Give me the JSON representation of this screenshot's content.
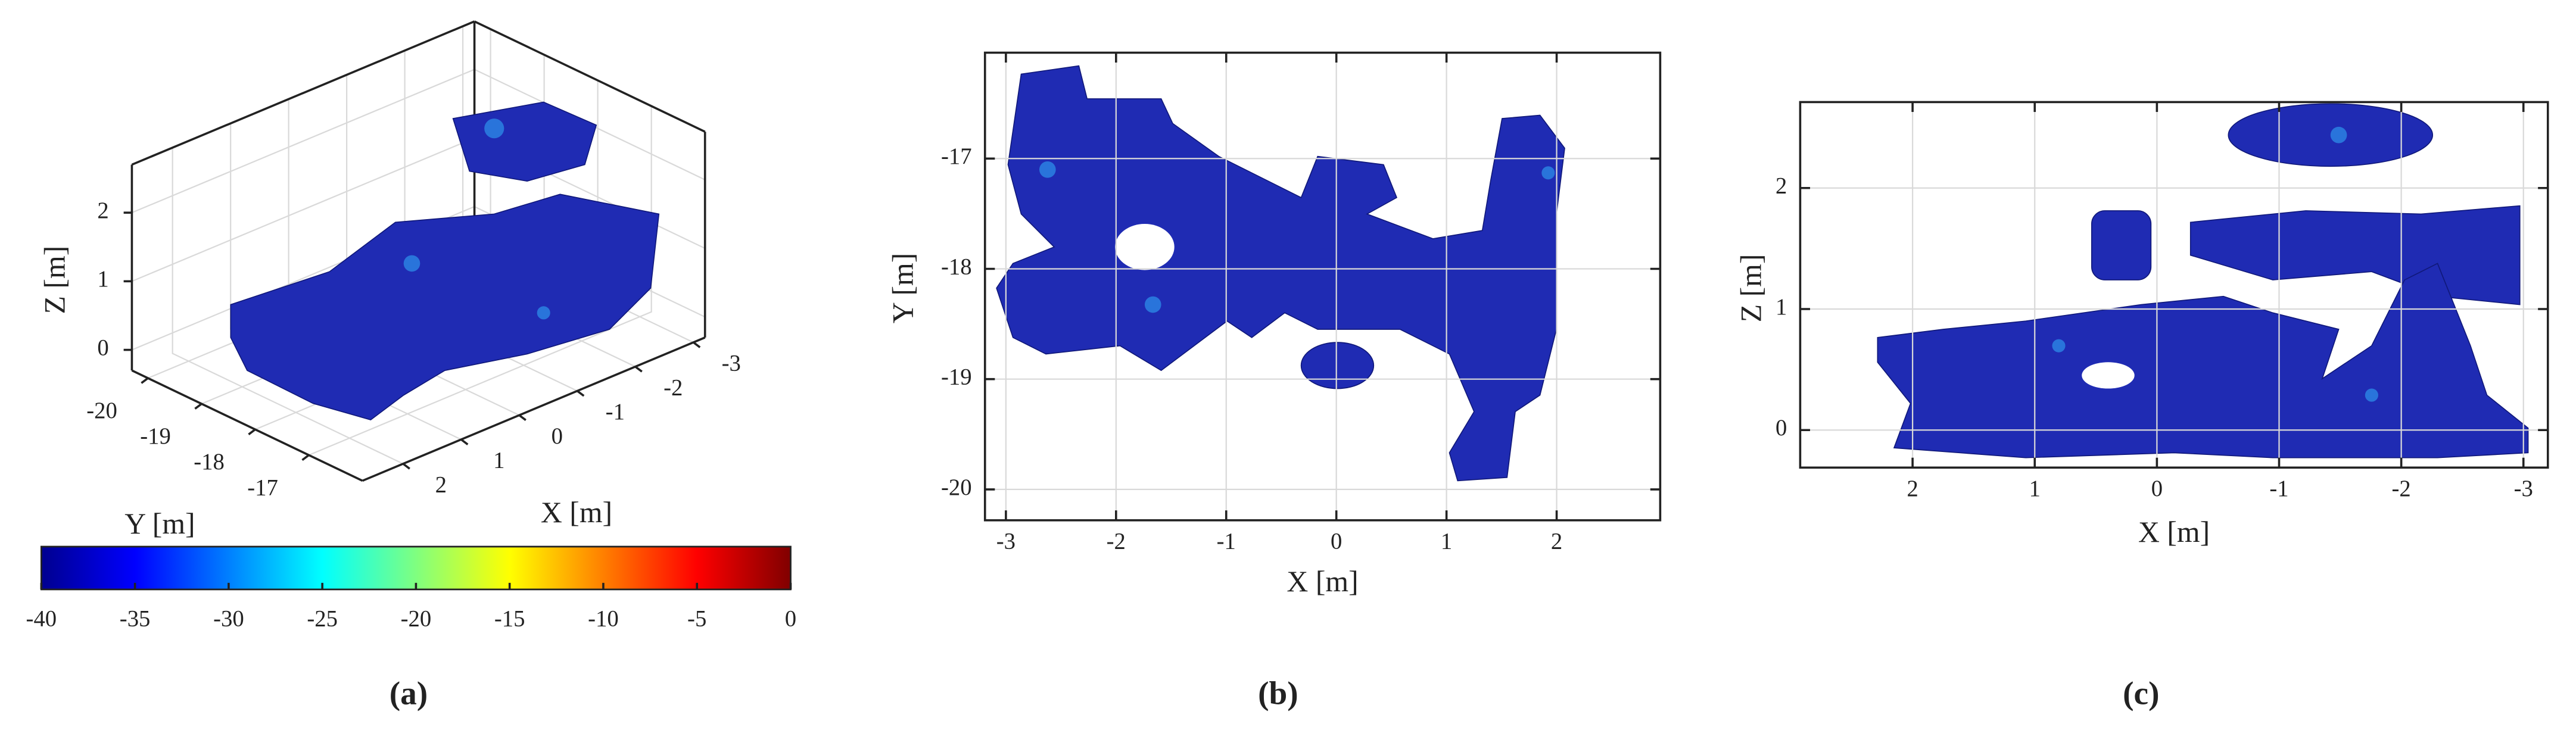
{
  "chart_data": [
    {
      "type": "scatter3d",
      "xlabel": "X [m]",
      "ylabel": "Y [m]",
      "zlabel": "Z [m]",
      "xlim": [
        2.7,
        -3.2
      ],
      "ylim": [
        -16.0,
        -20.3
      ],
      "zlim": [
        -0.3,
        2.7
      ],
      "xticks": [
        2,
        1,
        0,
        -1,
        -2,
        -3
      ],
      "yticks": [
        -20,
        -19,
        -18,
        -17
      ],
      "zticks": [
        0,
        1,
        2
      ],
      "grid": true,
      "caption": "(a)",
      "colorbar": {
        "colormap": "jet",
        "lim": [
          -40,
          0
        ],
        "ticks": [
          -40,
          -35,
          -30,
          -25,
          -20,
          -15,
          -10,
          -5,
          0
        ]
      }
    },
    {
      "type": "scatter",
      "xlabel": "X [m]",
      "ylabel": "Y [m]",
      "xlim": [
        -3.19,
        2.94
      ],
      "ylim": [
        -20.28,
        -16.04
      ],
      "xticks": [
        -3,
        -2,
        -1,
        0,
        1,
        2
      ],
      "yticks": [
        -20,
        -19,
        -18,
        -17
      ],
      "grid": true,
      "caption": "(b)"
    },
    {
      "type": "scatter",
      "xlabel": "X [m]",
      "ylabel": "Z [m]",
      "xlim": [
        2.92,
        -3.2
      ],
      "ylim": [
        -0.31,
        2.71
      ],
      "xticks": [
        2,
        1,
        0,
        -1,
        -2,
        -3
      ],
      "yticks": [
        0,
        1,
        2
      ],
      "grid": true,
      "caption": "(c)"
    }
  ]
}
